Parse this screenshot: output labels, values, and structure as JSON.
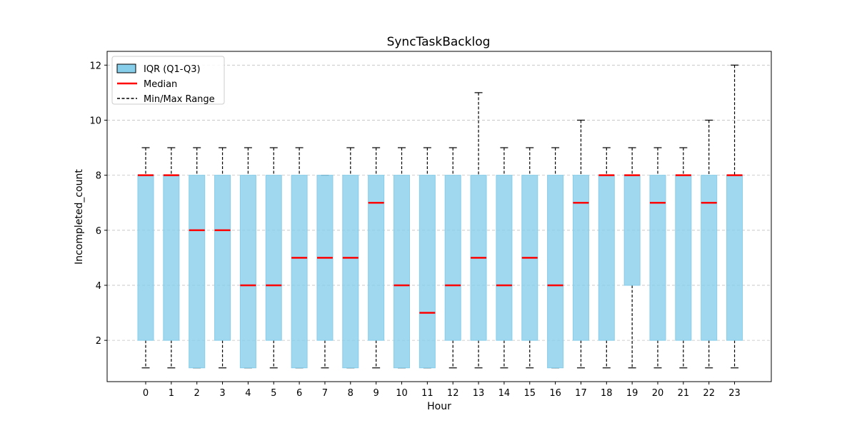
{
  "chart_data": {
    "type": "box",
    "title": "SyncTaskBacklog",
    "xlabel": "Hour",
    "ylabel": "Incompleted_count",
    "x": [
      0,
      1,
      2,
      3,
      4,
      5,
      6,
      7,
      8,
      9,
      10,
      11,
      12,
      13,
      14,
      15,
      16,
      17,
      18,
      19,
      20,
      21,
      22,
      23
    ],
    "min": [
      1,
      1,
      1,
      1,
      1,
      1,
      1,
      1,
      1,
      1,
      1,
      1,
      1,
      1,
      1,
      1,
      1,
      1,
      1,
      1,
      1,
      1,
      1,
      1
    ],
    "q1": [
      2,
      2,
      1,
      2,
      1,
      2,
      1,
      2,
      1,
      2,
      1,
      1,
      2,
      2,
      2,
      2,
      1,
      2,
      2,
      4,
      2,
      2,
      2,
      2
    ],
    "median": [
      8,
      8,
      6,
      6,
      4,
      4,
      5,
      5,
      5,
      7,
      4,
      3,
      4,
      5,
      4,
      5,
      4,
      7,
      8,
      8,
      7,
      8,
      7,
      8
    ],
    "q3": [
      8,
      8,
      8,
      8,
      8,
      8,
      8,
      8,
      8,
      8,
      8,
      8,
      8,
      8,
      8,
      8,
      8,
      8,
      8,
      8,
      8,
      8,
      8,
      8
    ],
    "max": [
      9,
      9,
      9,
      9,
      9,
      9,
      9,
      8,
      9,
      9,
      9,
      9,
      9,
      11,
      9,
      9,
      9,
      10,
      9,
      9,
      9,
      9,
      10,
      12
    ],
    "ylim": [
      0.5,
      12.5
    ],
    "yticks": [
      2,
      4,
      6,
      8,
      10,
      12
    ],
    "grid": "y-dashed",
    "legend": {
      "placement": "top-left",
      "entries": [
        {
          "label": "IQR (Q1-Q3)",
          "kind": "box"
        },
        {
          "label": "Median",
          "kind": "median"
        },
        {
          "label": "Min/Max Range",
          "kind": "whisker"
        }
      ]
    },
    "colors": {
      "box_fill": "#87CEEB",
      "box_edge": "#87CEEB",
      "median": "#FF0000",
      "whisker": "#000000",
      "grid": "#C0C0C0"
    }
  }
}
